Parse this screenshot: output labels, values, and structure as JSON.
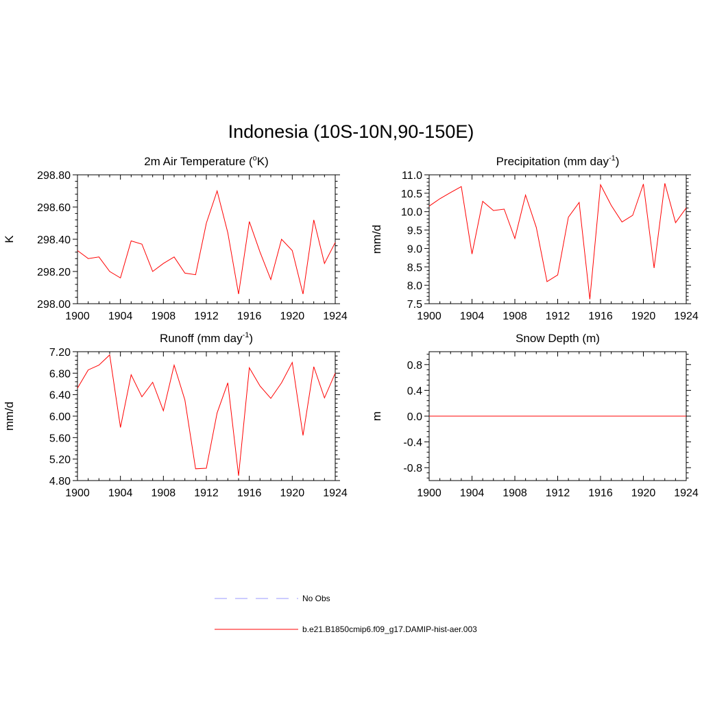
{
  "figure": {
    "title": "Indonesia (10S-10N,90-150E)",
    "line_color": "#ff0000",
    "obs_color": "#9999ff"
  },
  "legend": {
    "items": [
      {
        "label": "No Obs",
        "style": "dashed",
        "color": "#9999ff"
      },
      {
        "label": "b.e21.B1850cmip6.f09_g17.DAMIP-hist-aer.003",
        "style": "solid",
        "color": "#ff0000"
      }
    ]
  },
  "chart_data": [
    {
      "type": "line",
      "title": "2m Air Temperature (",
      "title_sup": "o",
      "title_after": "K)",
      "ylabel": "K",
      "xlim": [
        1900,
        1924
      ],
      "ylim": [
        298.0,
        298.8
      ],
      "xticks": [
        1900,
        1904,
        1908,
        1912,
        1916,
        1920,
        1924
      ],
      "xtick_labels": [
        "1900",
        "1904",
        "1908",
        "1912",
        "1916",
        "1920",
        "1924"
      ],
      "yticks": [
        298.0,
        298.2,
        298.4,
        298.6,
        298.8
      ],
      "ytick_labels": [
        "298.00",
        "298.20",
        "298.40",
        "298.60",
        "298.80"
      ],
      "x": [
        1900,
        1901,
        1902,
        1903,
        1904,
        1905,
        1906,
        1907,
        1908,
        1909,
        1910,
        1911,
        1912,
        1913,
        1914,
        1915,
        1916,
        1917,
        1918,
        1919,
        1920,
        1921,
        1922,
        1923,
        1924
      ],
      "values": [
        298.33,
        298.28,
        298.29,
        298.2,
        298.16,
        298.39,
        298.37,
        298.2,
        298.25,
        298.29,
        298.19,
        298.18,
        298.5,
        298.7,
        298.44,
        298.06,
        298.51,
        298.32,
        298.15,
        298.4,
        298.33,
        298.06,
        298.52,
        298.25,
        298.38
      ]
    },
    {
      "type": "line",
      "title": "Precipitation (mm day",
      "title_sup": "-1",
      "title_after": ")",
      "ylabel": "mm/d",
      "xlim": [
        1900,
        1924
      ],
      "ylim": [
        7.5,
        11.0
      ],
      "xticks": [
        1900,
        1904,
        1908,
        1912,
        1916,
        1920,
        1924
      ],
      "xtick_labels": [
        "1900",
        "1904",
        "1908",
        "1912",
        "1916",
        "1920",
        "1924"
      ],
      "yticks": [
        7.5,
        8.0,
        8.5,
        9.0,
        9.5,
        10.0,
        10.5,
        11.0
      ],
      "ytick_labels": [
        "7.5",
        "8.0",
        "8.5",
        "9.0",
        "9.5",
        "10.0",
        "10.5",
        "11.0"
      ],
      "x": [
        1900,
        1901,
        1902,
        1903,
        1904,
        1905,
        1906,
        1907,
        1908,
        1909,
        1910,
        1911,
        1912,
        1913,
        1914,
        1915,
        1916,
        1917,
        1918,
        1919,
        1920,
        1921,
        1922,
        1923,
        1924
      ],
      "values": [
        10.15,
        10.35,
        10.52,
        10.68,
        8.85,
        10.28,
        10.03,
        10.07,
        9.27,
        10.45,
        9.57,
        8.1,
        8.28,
        9.85,
        10.25,
        7.62,
        10.73,
        10.17,
        9.72,
        9.9,
        10.75,
        8.47,
        10.77,
        9.7,
        10.1
      ]
    },
    {
      "type": "line",
      "title": "Runoff (mm day",
      "title_sup": "-1",
      "title_after": ")",
      "ylabel": "mm/d",
      "xlim": [
        1900,
        1924
      ],
      "ylim": [
        4.8,
        7.2
      ],
      "xticks": [
        1900,
        1904,
        1908,
        1912,
        1916,
        1920,
        1924
      ],
      "xtick_labels": [
        "1900",
        "1904",
        "1908",
        "1912",
        "1916",
        "1920",
        "1924"
      ],
      "yticks": [
        4.8,
        5.2,
        5.6,
        6.0,
        6.4,
        6.8,
        7.2
      ],
      "ytick_labels": [
        "4.80",
        "5.20",
        "5.60",
        "6.00",
        "6.40",
        "6.80",
        "7.20"
      ],
      "x": [
        1900,
        1901,
        1902,
        1903,
        1904,
        1905,
        1906,
        1907,
        1908,
        1909,
        1910,
        1911,
        1912,
        1913,
        1914,
        1915,
        1916,
        1917,
        1918,
        1919,
        1920,
        1921,
        1922,
        1923,
        1924
      ],
      "values": [
        6.52,
        6.86,
        6.95,
        7.14,
        5.79,
        6.77,
        6.36,
        6.63,
        6.1,
        6.95,
        6.3,
        5.02,
        5.03,
        6.06,
        6.62,
        4.89,
        6.9,
        6.56,
        6.33,
        6.62,
        7.0,
        5.64,
        6.92,
        6.34,
        6.8
      ]
    },
    {
      "type": "line",
      "title": "Snow Depth (m)",
      "title_sup": "",
      "title_after": "",
      "ylabel": "m",
      "xlim": [
        1900,
        1924
      ],
      "ylim": [
        -1.0,
        1.0
      ],
      "xticks": [
        1900,
        1904,
        1908,
        1912,
        1916,
        1920,
        1924
      ],
      "xtick_labels": [
        "1900",
        "1904",
        "1908",
        "1912",
        "1916",
        "1920",
        "1924"
      ],
      "yticks": [
        -0.8,
        -0.4,
        0.0,
        0.4,
        0.8
      ],
      "ytick_labels": [
        "-0.8",
        "-0.4",
        "0.0",
        "0.4",
        "0.8"
      ],
      "x": [
        1900,
        1901,
        1902,
        1903,
        1904,
        1905,
        1906,
        1907,
        1908,
        1909,
        1910,
        1911,
        1912,
        1913,
        1914,
        1915,
        1916,
        1917,
        1918,
        1919,
        1920,
        1921,
        1922,
        1923,
        1924
      ],
      "values": [
        0,
        0,
        0,
        0,
        0,
        0,
        0,
        0,
        0,
        0,
        0,
        0,
        0,
        0,
        0,
        0,
        0,
        0,
        0,
        0,
        0,
        0,
        0,
        0,
        0
      ]
    }
  ]
}
